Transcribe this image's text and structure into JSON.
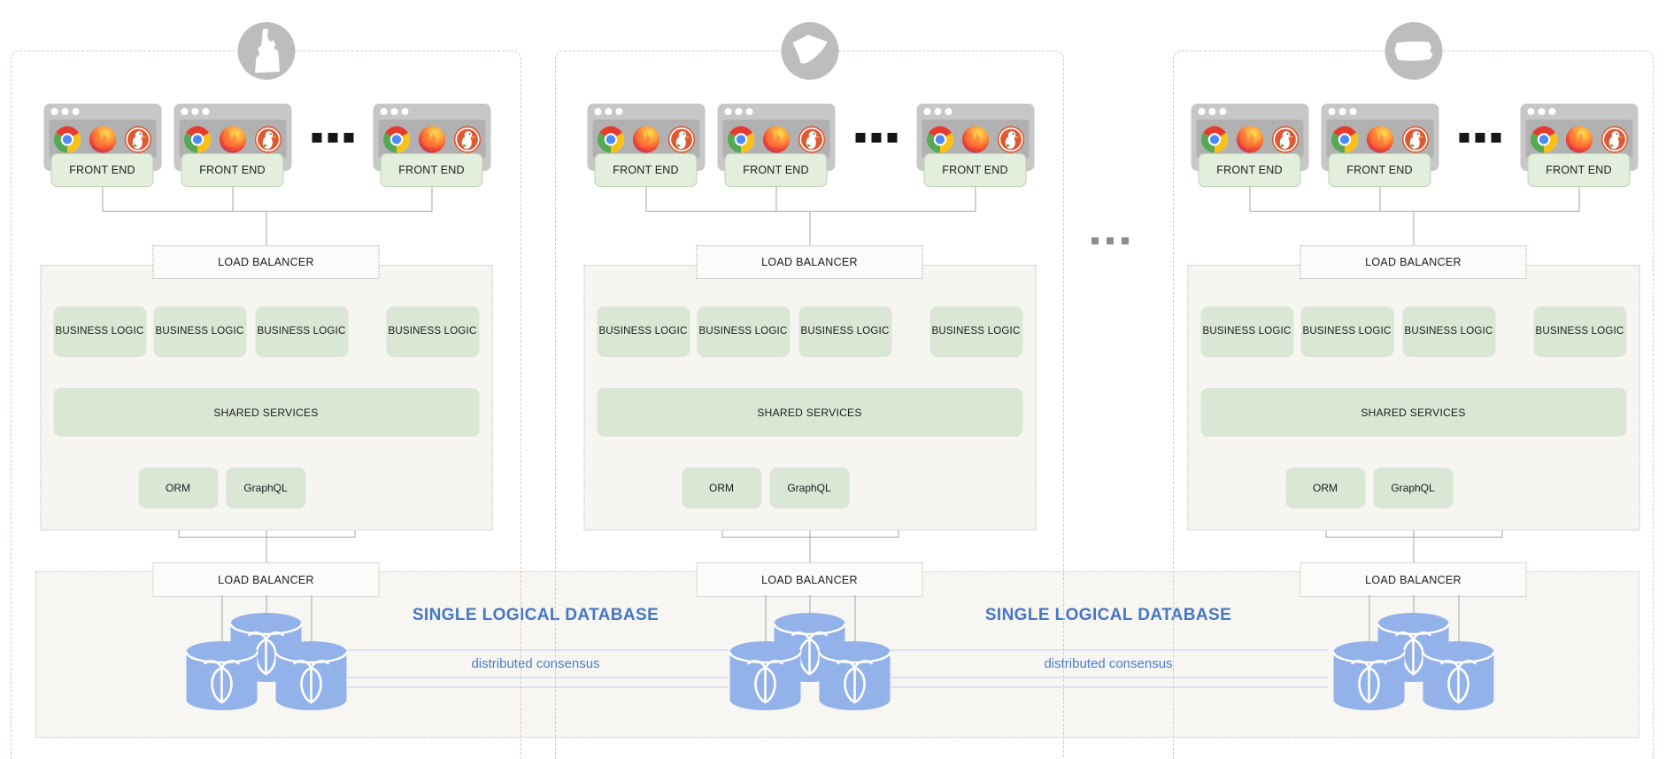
{
  "diagram": {
    "kind": "multi-region application architecture",
    "regions": [
      {
        "state": "idaho",
        "badge": "idaho-state-icon"
      },
      {
        "state": "south-carolina",
        "badge": "south-carolina-state-icon"
      },
      {
        "state": "iowa",
        "badge": "iowa-state-icon"
      }
    ],
    "browser_icons": [
      "chrome-icon",
      "firefox-icon",
      "duckduckgo-icon"
    ],
    "database_icon": "cockroachdb-icon",
    "db_nodes_per_cluster": 3
  },
  "labels": {
    "front_end": "FRONT END",
    "load_balancer": "LOAD BALANCER",
    "business_logic": "BUSINESS LOGIC",
    "shared_services": "SHARED SERVICES",
    "orm": "ORM",
    "graphql": "GraphQL",
    "single_logical_database": "SINGLE LOGICAL DATABASE",
    "distributed_consensus": "distributed consensus"
  },
  "colors": {
    "box_green": "#d9e7d4",
    "front_end_green": "#e3eedd",
    "db_blue": "#93b2ea",
    "blue_text": "#4577c4",
    "consensus_line": "#d8e4f6",
    "region_border_dashed": "#e0c2ba",
    "container_bg": "#f6f5f2",
    "window_gray": "#c7c7c7"
  }
}
